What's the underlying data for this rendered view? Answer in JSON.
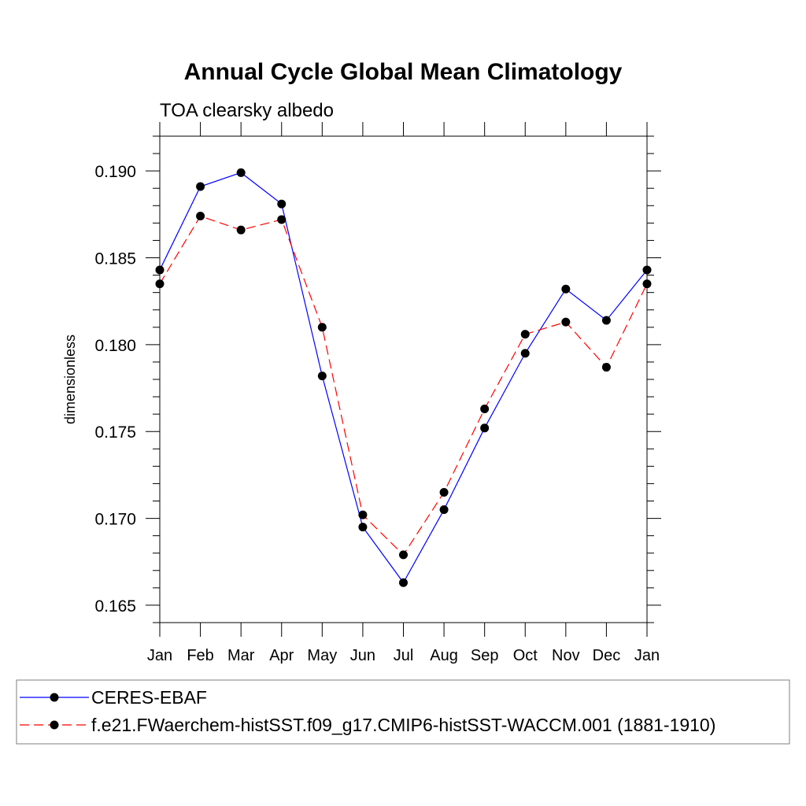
{
  "chart_data": {
    "type": "line",
    "title": "Annual Cycle Global Mean Climatology",
    "subtitle": "TOA clearsky albedo",
    "xlabel": "",
    "ylabel": "dimensionless",
    "categories": [
      "Jan",
      "Feb",
      "Mar",
      "Apr",
      "May",
      "Jun",
      "Jul",
      "Aug",
      "Sep",
      "Oct",
      "Nov",
      "Dec",
      "Jan"
    ],
    "ylim": [
      0.164,
      0.192
    ],
    "yticks": [
      "0.165",
      "0.170",
      "0.175",
      "0.180",
      "0.185",
      "0.190"
    ],
    "grid": false,
    "legend_position": "bottom",
    "series": [
      {
        "name": "CERES-EBAF",
        "color": "#0000ff",
        "line_style": "solid",
        "marker": "filled-circle",
        "values": [
          0.1843,
          0.1891,
          0.1899,
          0.1881,
          0.1782,
          0.1695,
          0.1663,
          0.1705,
          0.1752,
          0.1795,
          0.1832,
          0.1814,
          0.1843
        ]
      },
      {
        "name": "f.e21.FWaerchem-histSST.f09_g17.CMIP6-histSST-WACCM.001 (1881-1910)",
        "color": "#ff0000",
        "line_style": "dashed",
        "marker": "filled-circle",
        "values": [
          0.1835,
          0.1874,
          0.1866,
          0.1872,
          0.181,
          0.1702,
          0.1679,
          0.1715,
          0.1763,
          0.1806,
          0.1813,
          0.1787,
          0.1835
        ]
      }
    ]
  }
}
